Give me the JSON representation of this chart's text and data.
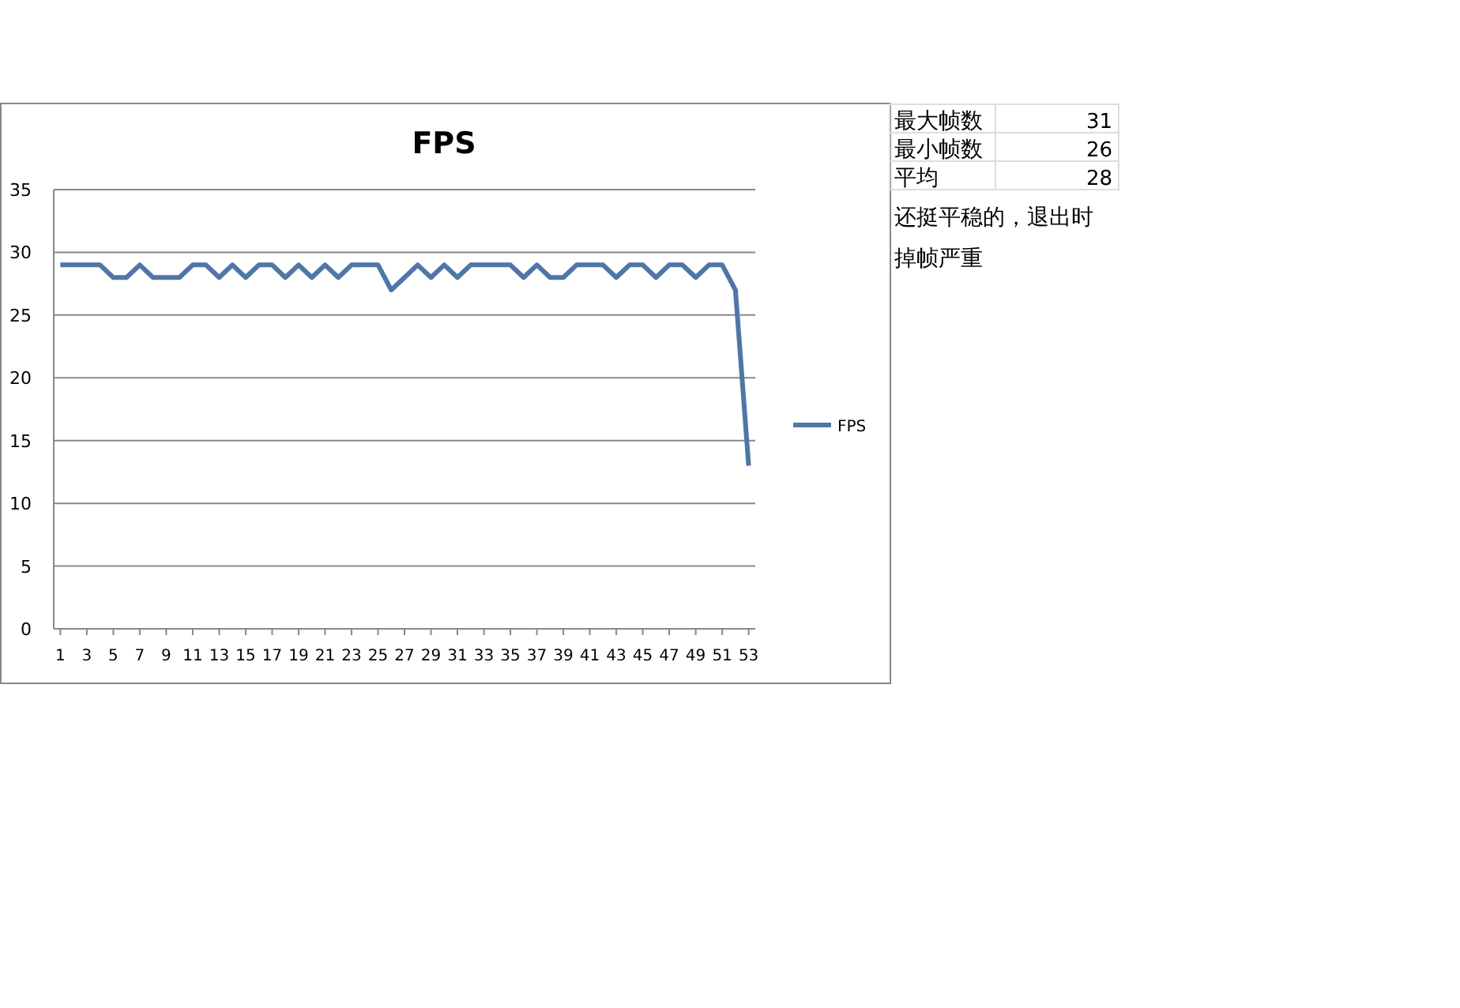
{
  "chart_data": {
    "type": "line",
    "title": "FPS",
    "x": [
      1,
      2,
      3,
      4,
      5,
      6,
      7,
      8,
      9,
      10,
      11,
      12,
      13,
      14,
      15,
      16,
      17,
      18,
      19,
      20,
      21,
      22,
      23,
      24,
      25,
      26,
      27,
      28,
      29,
      30,
      31,
      32,
      33,
      34,
      35,
      36,
      37,
      38,
      39,
      40,
      41,
      42,
      43,
      44,
      45,
      46,
      47,
      48,
      49,
      50,
      51,
      52,
      53
    ],
    "xlim": [
      0.5,
      53.5
    ],
    "xticks": [
      1,
      3,
      5,
      7,
      9,
      11,
      13,
      15,
      17,
      19,
      21,
      23,
      25,
      27,
      29,
      31,
      33,
      35,
      37,
      39,
      41,
      43,
      45,
      47,
      49,
      51,
      53
    ],
    "series": [
      {
        "name": "FPS",
        "color": "#4f76a6",
        "values": [
          29,
          29,
          29,
          29,
          28,
          28,
          29,
          28,
          28,
          28,
          29,
          29,
          28,
          29,
          28,
          29,
          29,
          28,
          29,
          28,
          29,
          28,
          29,
          29,
          29,
          27,
          28,
          29,
          28,
          29,
          28,
          29,
          29,
          29,
          29,
          28,
          29,
          28,
          28,
          29,
          29,
          29,
          28,
          29,
          29,
          28,
          29,
          29,
          28,
          29,
          29,
          27,
          13
        ]
      }
    ],
    "ylim": [
      0,
      35
    ],
    "yticks": [
      0,
      5,
      10,
      15,
      20,
      25,
      30,
      35
    ],
    "grid": "y",
    "legend": "right",
    "marker": "none",
    "line_style": "solid",
    "annotations": [
      "最大帧数",
      "31",
      "最小帧数",
      "26",
      "平均",
      "28",
      "还挺平稳的，退出时掉帧严重"
    ]
  }
}
